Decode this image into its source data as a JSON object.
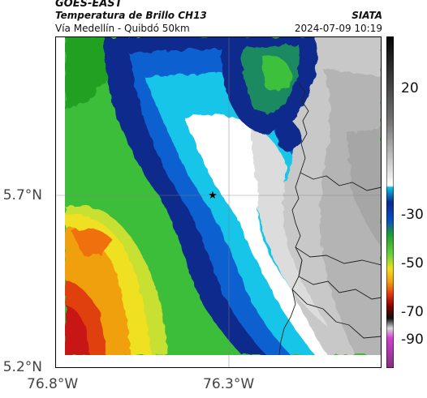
{
  "header": {
    "satellite": "GOES-EAST",
    "product": "Temperatura de Brillo CH13",
    "subtitle": "Vía Medellín - Quibdó 50km",
    "org": "SIATA",
    "datetime": "2024-07-09 10:19"
  },
  "axes": {
    "lat_ticks": [
      "5.7°N",
      "5.2°N"
    ],
    "lon_ticks": [
      "76.8°W",
      "76.3°W"
    ]
  },
  "colorbar": {
    "ticks": [
      "20",
      "-30",
      "-50",
      "-70",
      "-90"
    ],
    "range": [
      -95,
      35
    ]
  },
  "map": {
    "marker": "star-icon",
    "colors": {
      "warm_gray": "#c8c8c8",
      "white": "#ffffff",
      "cyan": "#19c5e8",
      "blue": "#0a2a8c",
      "green": "#3ec03a",
      "yellow": "#f0e020",
      "orange": "#f07010",
      "red": "#c81818"
    }
  }
}
